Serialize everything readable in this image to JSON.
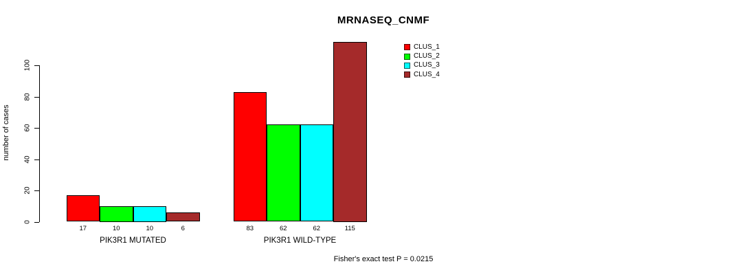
{
  "title": "MRNASEQ_CNMF",
  "ylabel": "number of cases",
  "footer": "Fisher's exact test P = 0.0215",
  "legend": [
    {
      "label": "CLUS_1",
      "color": "#FF0000"
    },
    {
      "label": "CLUS_2",
      "color": "#00FF00"
    },
    {
      "label": "CLUS_3",
      "color": "#00FFFF"
    },
    {
      "label": "CLUS_4",
      "color": "#A52A2A"
    }
  ],
  "chart_data": {
    "type": "bar",
    "title": "MRNASEQ_CNMF",
    "ylabel": "number of cases",
    "xlabel": "",
    "categories": [
      "PIK3R1 MUTATED",
      "PIK3R1 WILD-TYPE"
    ],
    "series": [
      {
        "name": "CLUS_1",
        "color": "#FF0000",
        "values": [
          17,
          83
        ]
      },
      {
        "name": "CLUS_2",
        "color": "#00FF00",
        "values": [
          10,
          62
        ]
      },
      {
        "name": "CLUS_3",
        "color": "#00FFFF",
        "values": [
          10,
          62
        ]
      },
      {
        "name": "CLUS_4",
        "color": "#A52A2A",
        "values": [
          6,
          115
        ]
      }
    ],
    "bar_value_labels": [
      [
        17,
        10,
        10,
        6
      ],
      [
        83,
        62,
        62,
        115
      ]
    ],
    "yticks": [
      0,
      20,
      40,
      60,
      80,
      100
    ],
    "ylim": [
      0,
      115
    ],
    "grid": false,
    "legend_position": "top-right",
    "annotation": "Fisher's exact test P = 0.0215"
  }
}
